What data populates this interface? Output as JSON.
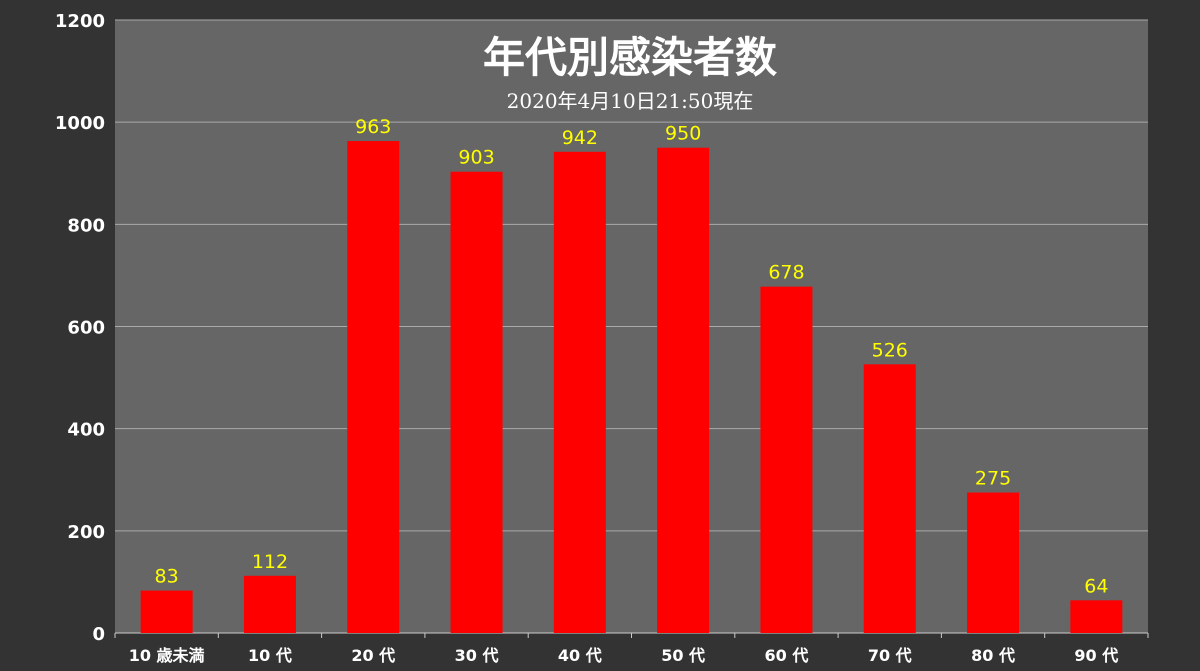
{
  "chart_data": {
    "type": "bar",
    "title": "年代別感染者数",
    "subtitle": "2020年4月10日21:50現在",
    "categories": [
      "10 歳未満",
      "10 代",
      "20 代",
      "30 代",
      "40 代",
      "50 代",
      "60 代",
      "70 代",
      "80 代",
      "90 代"
    ],
    "values": [
      83,
      112,
      963,
      903,
      942,
      950,
      678,
      526,
      275,
      64
    ],
    "ylim": [
      0,
      1200
    ],
    "yticks": [
      0,
      200,
      400,
      600,
      800,
      1000,
      1200
    ],
    "xlabel": "",
    "ylabel": "",
    "grid": true,
    "legend": "none",
    "colors": {
      "page_background": "#333333",
      "plot_background": "#666666",
      "bar": "#ff0000",
      "data_label": "#ffff00",
      "axis_text": "#ffffff",
      "gridline": "#aaaaaa"
    }
  }
}
